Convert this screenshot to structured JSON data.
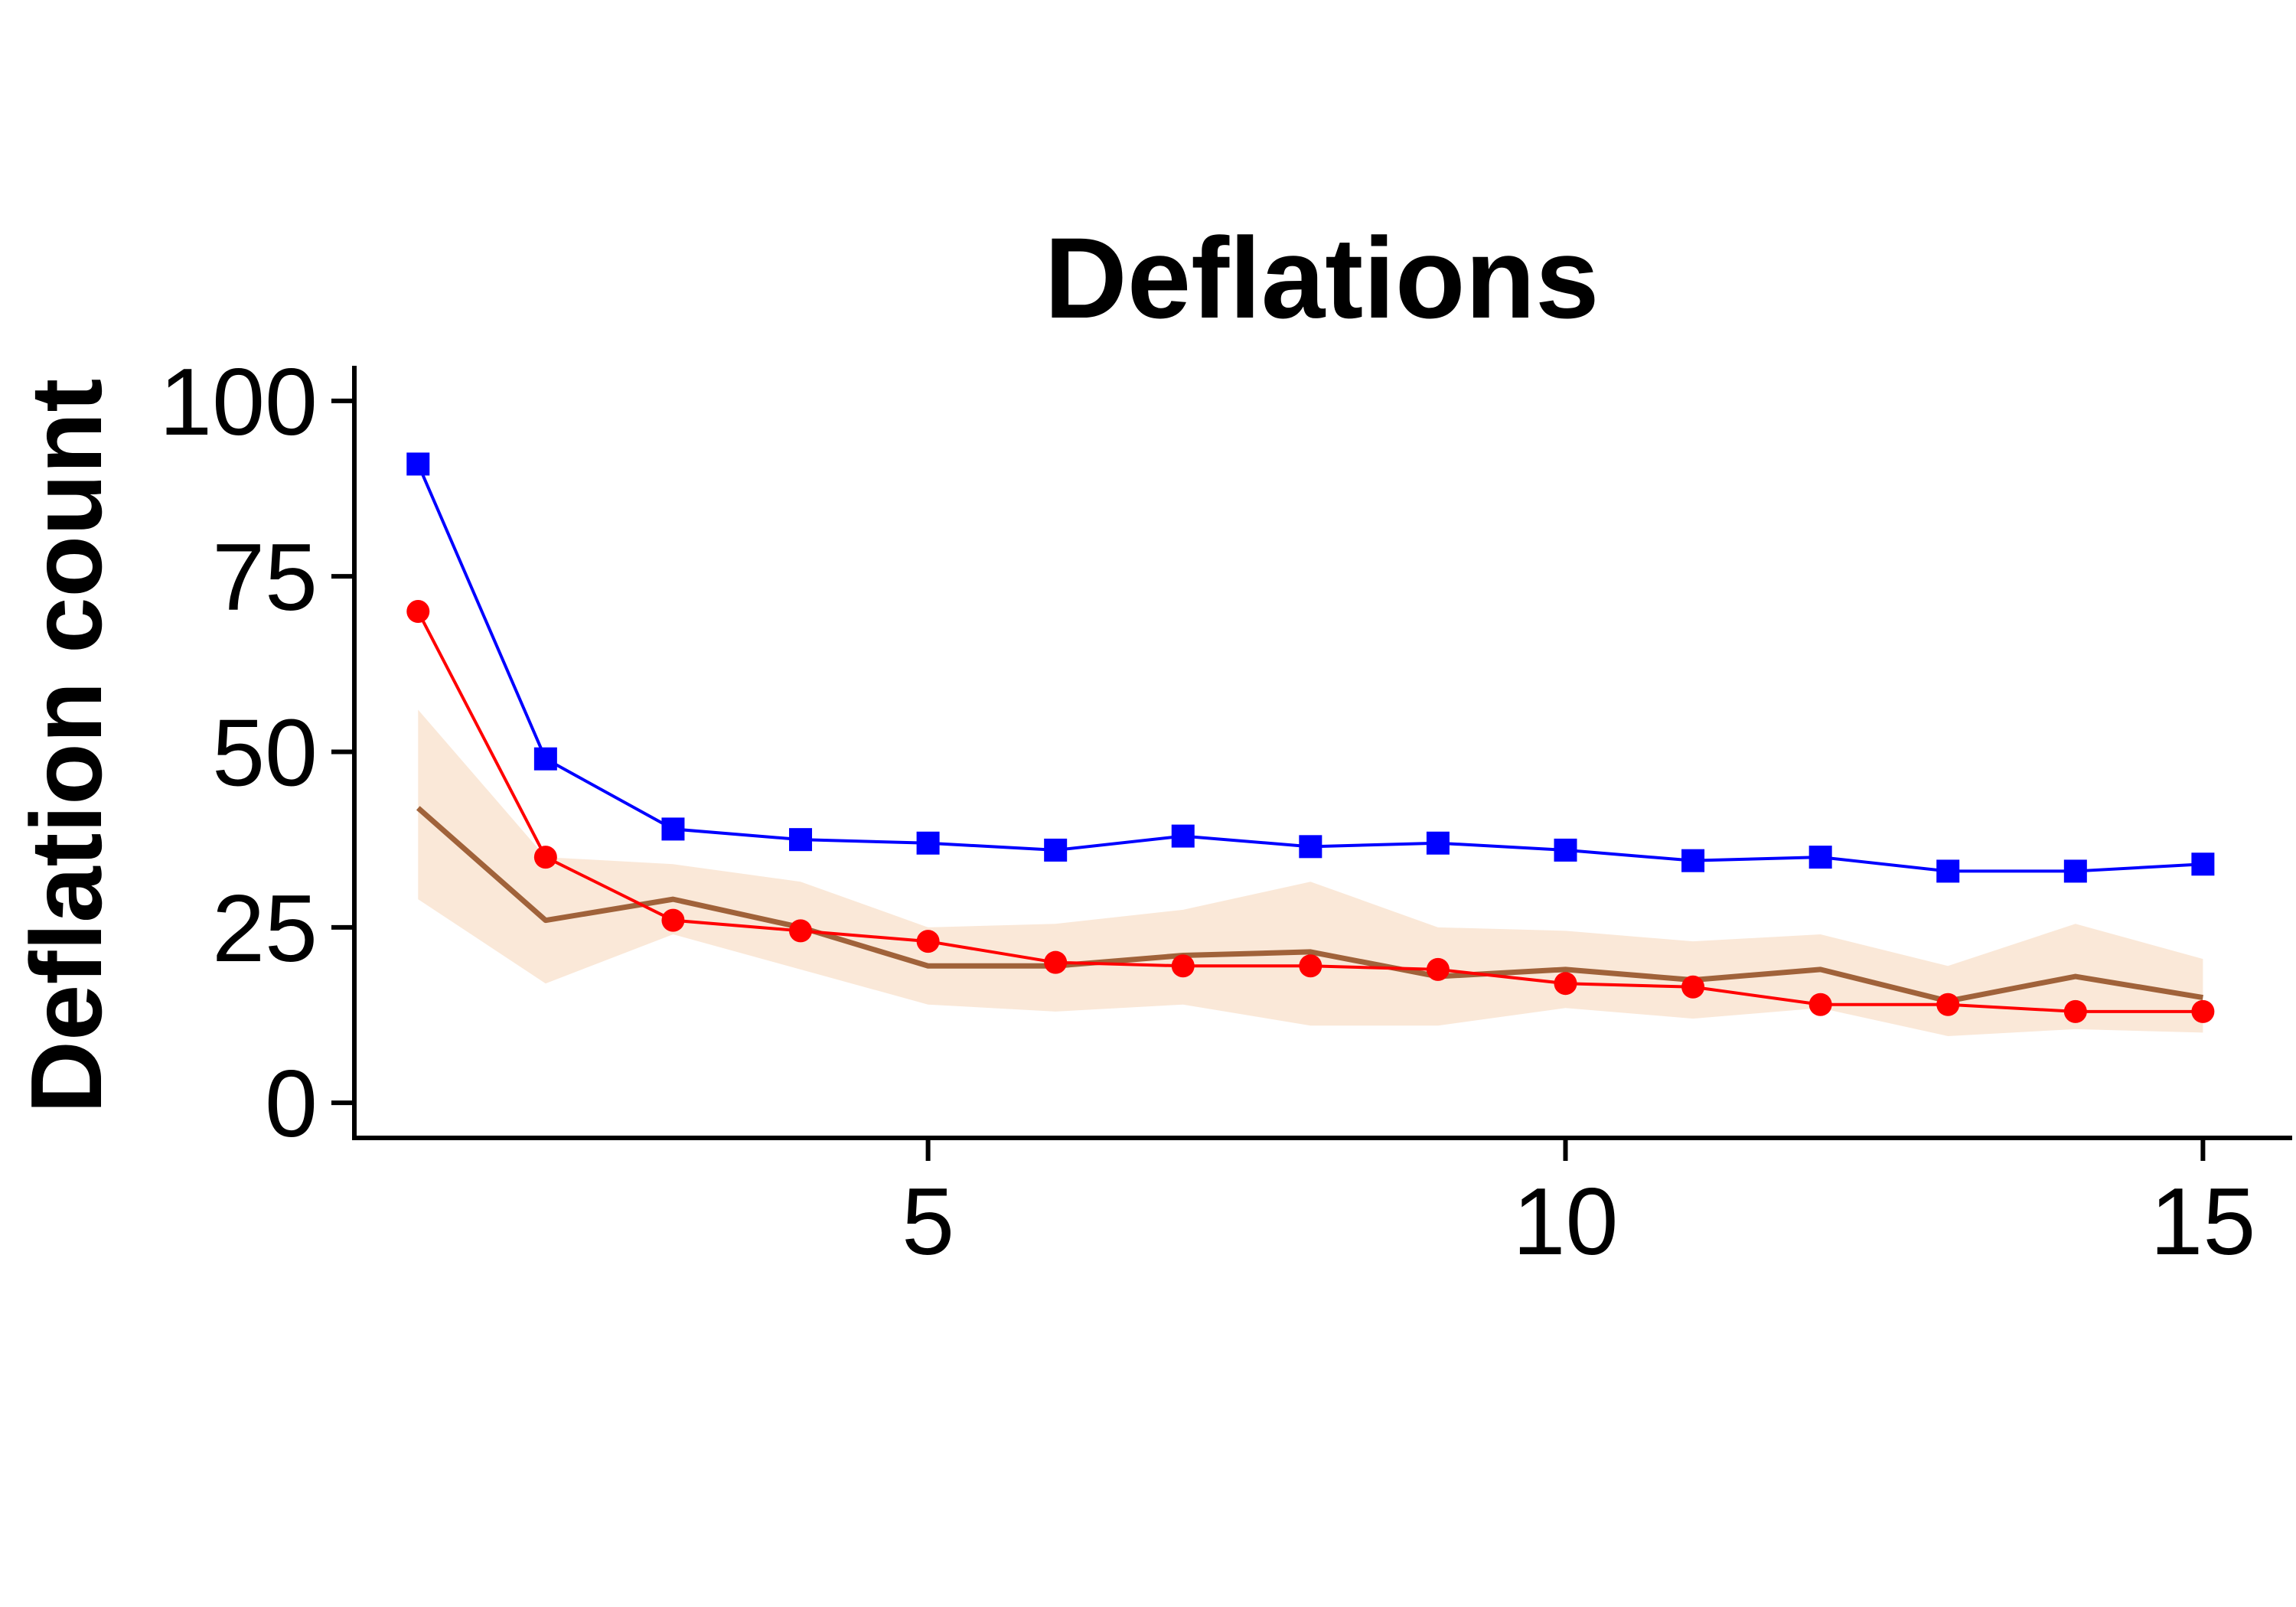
{
  "chart_data": {
    "type": "line",
    "title": "Deflations",
    "xlabel": "",
    "ylabel": "Deflation count",
    "xlim": [
      0.5,
      15.7
    ],
    "ylim": [
      -5,
      105
    ],
    "x_ticks": [
      5,
      10,
      15
    ],
    "x_tick_labels": [
      "5",
      "10",
      "15"
    ],
    "y_ticks": [
      0,
      25,
      50,
      75,
      100
    ],
    "y_tick_labels": [
      "0",
      "25",
      "50",
      "75",
      "100"
    ],
    "grid": false,
    "legend": "none",
    "x": [
      1,
      2,
      3,
      4,
      5,
      6,
      7,
      8,
      9,
      10,
      11,
      12,
      13,
      14,
      15
    ],
    "series": [
      {
        "color": "#0000ff",
        "marker": "square",
        "values": [
          91,
          49,
          39,
          37.5,
          37,
          36,
          38,
          36.5,
          37,
          36,
          34.5,
          35,
          33,
          33,
          34
        ]
      },
      {
        "color": "#ff0000",
        "marker": "circle",
        "values": [
          70,
          35,
          26,
          24.5,
          23,
          20,
          19.5,
          19.5,
          19,
          17,
          16.5,
          14,
          14,
          13,
          13
        ]
      },
      {
        "color": "#a0623a",
        "marker": "none",
        "values": [
          42,
          26,
          29,
          25,
          19.5,
          19.5,
          21,
          21.5,
          18,
          19,
          17.5,
          19,
          14.5,
          18,
          15
        ],
        "band_color": "#fae8d8",
        "band_upper": [
          56,
          35,
          34,
          31.5,
          25,
          25.5,
          27.5,
          31.5,
          25,
          24.5,
          23,
          24,
          19.5,
          25.5,
          20.5
        ],
        "band_lower": [
          29,
          17,
          24,
          19,
          14,
          13,
          14,
          11,
          11,
          13.5,
          12,
          13.5,
          9.5,
          10.5,
          10
        ]
      }
    ]
  }
}
